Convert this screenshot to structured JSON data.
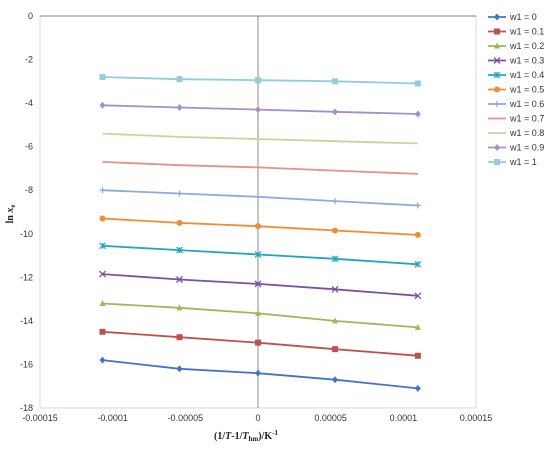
{
  "chart_data": {
    "type": "line",
    "xlabel": "(1/T-1/Thm)/K-1",
    "xlabel_parts": {
      "open": "(1/",
      "T": "T",
      "mid": "-1/",
      "Thm": "T",
      "hm_sub": "hm",
      "close": ")/K",
      "exp": "-1"
    },
    "ylabel": "ln xe",
    "ylabel_parts": {
      "ln": "ln ",
      "x": "x",
      "sub": "e"
    },
    "xlim": [
      -0.00015,
      0.00015
    ],
    "ylim": [
      -18,
      0
    ],
    "x_ticks": [
      -0.00015,
      -0.0001,
      -5e-05,
      0,
      5e-05,
      0.0001,
      0.00015
    ],
    "x_tick_labels": [
      "-0.00015",
      "-0.0001",
      "-0.00005",
      "0",
      "0.00005",
      "0.0001",
      "0.00015"
    ],
    "y_ticks": [
      0,
      -2,
      -4,
      -6,
      -8,
      -10,
      -12,
      -14,
      -16,
      -18
    ],
    "y_tick_labels": [
      "0",
      "-2",
      "-4",
      "-6",
      "-8",
      "-10",
      "-12",
      "-14",
      "-16",
      "-18"
    ],
    "grid": false,
    "legend_position": "right",
    "x": [
      -0.000107,
      -5.4e-05,
      0,
      5.3e-05,
      0.00011
    ],
    "series": [
      {
        "name": "w1 = 0",
        "color": "#4472c4",
        "marker": "diamond",
        "values": [
          -15.8,
          -16.2,
          -16.4,
          -16.7,
          -17.1
        ]
      },
      {
        "name": "w1 = 0.1",
        "color": "#c0504d",
        "marker": "square",
        "values": [
          -14.5,
          -14.75,
          -15.0,
          -15.3,
          -15.6
        ]
      },
      {
        "name": "w1 = 0.2",
        "color": "#9bbb59",
        "marker": "triangle",
        "values": [
          -13.2,
          -13.4,
          -13.65,
          -14.0,
          -14.3
        ]
      },
      {
        "name": "w1 = 0.3",
        "color": "#7f4f9f",
        "marker": "x",
        "values": [
          -11.85,
          -12.1,
          -12.3,
          -12.55,
          -12.85
        ]
      },
      {
        "name": "w1 = 0.4",
        "color": "#23a5c0",
        "marker": "star",
        "values": [
          -10.55,
          -10.75,
          -10.95,
          -11.15,
          -11.4
        ]
      },
      {
        "name": "w1 = 0.5",
        "color": "#f08c32",
        "marker": "circle",
        "values": [
          -9.3,
          -9.5,
          -9.65,
          -9.85,
          -10.05
        ]
      },
      {
        "name": "w1 = 0.6",
        "color": "#8faadc",
        "marker": "plus",
        "values": [
          -8.0,
          -8.15,
          -8.3,
          -8.5,
          -8.7
        ]
      },
      {
        "name": "w1 = 0.7",
        "color": "#e6908a",
        "marker": "none",
        "values": [
          -6.7,
          -6.85,
          -6.95,
          -7.1,
          -7.25
        ]
      },
      {
        "name": "w1 = 0.8",
        "color": "#c4d79b",
        "marker": "none",
        "values": [
          -5.4,
          -5.55,
          -5.65,
          -5.75,
          -5.85
        ]
      },
      {
        "name": "w1 = 0.9",
        "color": "#a58fc8",
        "marker": "diamond",
        "values": [
          -4.1,
          -4.2,
          -4.3,
          -4.4,
          -4.5
        ]
      },
      {
        "name": "w1 = 1",
        "color": "#93cddd",
        "marker": "square",
        "values": [
          -2.8,
          -2.9,
          -2.95,
          -3.0,
          -3.1
        ]
      }
    ]
  }
}
